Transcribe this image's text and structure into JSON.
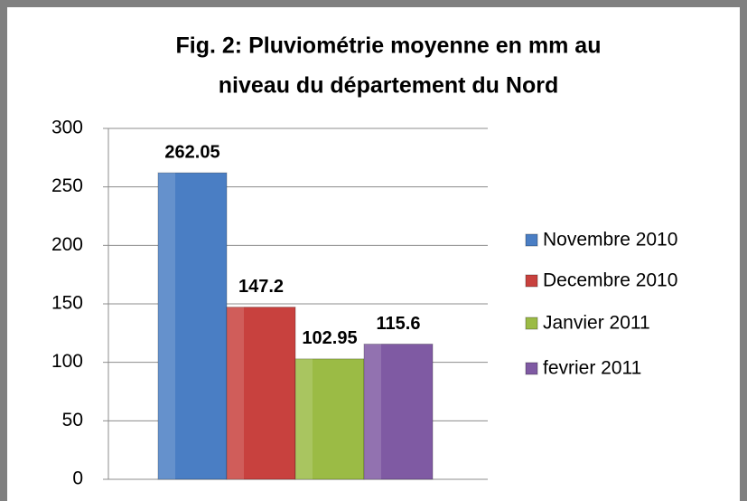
{
  "chart_data": {
    "type": "bar",
    "title": [
      "Fig. 2: Pluviométrie  moyenne en mm au",
      "niveau du département du Nord"
    ],
    "categories": [
      null
    ],
    "series": [
      {
        "name": "Novembre 2010",
        "color": "#4a7ec4",
        "values": [
          262.05
        ]
      },
      {
        "name": "Decembre 2010",
        "color": "#c8413e",
        "values": [
          147.2
        ]
      },
      {
        "name": "Janvier 2011",
        "color": "#9bbb45",
        "values": [
          102.95
        ]
      },
      {
        "name": "fevrier 2011",
        "color": "#7f5aa3",
        "values": [
          115.6
        ]
      }
    ],
    "ylim": [
      0,
      300
    ],
    "yticks": [
      0,
      50,
      100,
      150,
      200,
      250,
      300
    ],
    "grid": true,
    "legend": "right"
  }
}
